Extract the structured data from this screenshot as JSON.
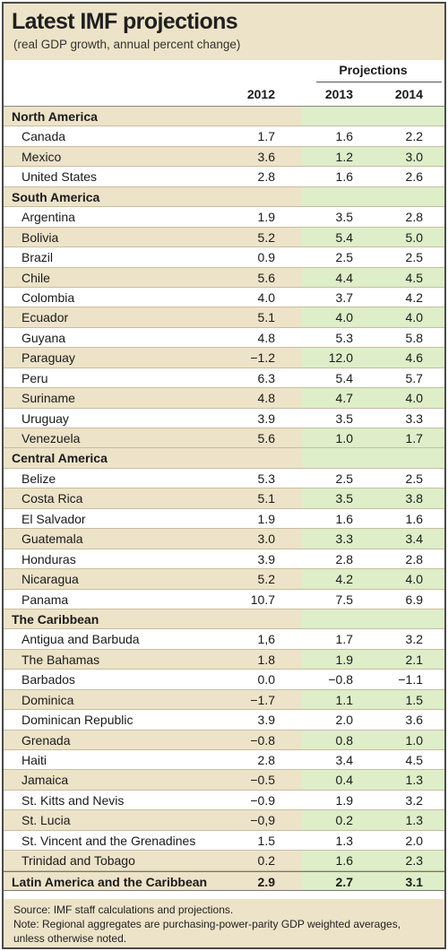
{
  "title": "Latest IMF projections",
  "subtitle": "(real GDP growth, annual percent change)",
  "projections_label": "Projections",
  "years": [
    "2012",
    "2013",
    "2014"
  ],
  "rows": [
    {
      "type": "region",
      "label": "North America"
    },
    {
      "type": "country",
      "label": "Canada",
      "v": [
        "1.7",
        "1.6",
        "2.2"
      ]
    },
    {
      "type": "country",
      "label": "Mexico",
      "v": [
        "3.6",
        "1.2",
        "3.0"
      ]
    },
    {
      "type": "country",
      "label": "United States",
      "v": [
        "2.8",
        "1.6",
        "2.6"
      ]
    },
    {
      "type": "region",
      "label": "South America"
    },
    {
      "type": "country",
      "label": "Argentina",
      "v": [
        "1.9",
        "3.5",
        "2.8"
      ]
    },
    {
      "type": "country",
      "label": "Bolivia",
      "v": [
        "5.2",
        "5.4",
        "5.0"
      ]
    },
    {
      "type": "country",
      "label": "Brazil",
      "v": [
        "0.9",
        "2.5",
        "2.5"
      ]
    },
    {
      "type": "country",
      "label": "Chile",
      "v": [
        "5.6",
        "4.4",
        "4.5"
      ]
    },
    {
      "type": "country",
      "label": "Colombia",
      "v": [
        "4.0",
        "3.7",
        "4.2"
      ]
    },
    {
      "type": "country",
      "label": "Ecuador",
      "v": [
        "5.1",
        "4.0",
        "4.0"
      ]
    },
    {
      "type": "country",
      "label": "Guyana",
      "v": [
        "4.8",
        "5.3",
        "5.8"
      ]
    },
    {
      "type": "country",
      "label": "Paraguay",
      "v": [
        "−1.2",
        "12.0",
        "4.6"
      ]
    },
    {
      "type": "country",
      "label": "Peru",
      "v": [
        "6.3",
        "5.4",
        "5.7"
      ]
    },
    {
      "type": "country",
      "label": "Suriname",
      "v": [
        "4.8",
        "4.7",
        "4.0"
      ]
    },
    {
      "type": "country",
      "label": "Uruguay",
      "v": [
        "3.9",
        "3.5",
        "3.3"
      ]
    },
    {
      "type": "country",
      "label": "Venezuela",
      "v": [
        "5.6",
        "1.0",
        "1.7"
      ]
    },
    {
      "type": "region",
      "label": "Central America"
    },
    {
      "type": "country",
      "label": "Belize",
      "v": [
        "5.3",
        "2.5",
        "2.5"
      ]
    },
    {
      "type": "country",
      "label": "Costa Rica",
      "v": [
        "5.1",
        "3.5",
        "3.8"
      ]
    },
    {
      "type": "country",
      "label": "El Salvador",
      "v": [
        "1.9",
        "1.6",
        "1.6"
      ]
    },
    {
      "type": "country",
      "label": "Guatemala",
      "v": [
        "3.0",
        "3.3",
        "3.4"
      ]
    },
    {
      "type": "country",
      "label": "Honduras",
      "v": [
        "3.9",
        "2.8",
        "2.8"
      ]
    },
    {
      "type": "country",
      "label": "Nicaragua",
      "v": [
        "5.2",
        "4.2",
        "4.0"
      ]
    },
    {
      "type": "country",
      "label": "Panama",
      "v": [
        "10.7",
        "7.5",
        "6.9"
      ]
    },
    {
      "type": "region",
      "label": "The Caribbean"
    },
    {
      "type": "country",
      "label": "Antigua and Barbuda",
      "v": [
        "1,6",
        "1.7",
        "3.2"
      ]
    },
    {
      "type": "country",
      "label": "The Bahamas",
      "v": [
        "1.8",
        "1.9",
        "2.1"
      ]
    },
    {
      "type": "country",
      "label": "Barbados",
      "v": [
        "0.0",
        "−0.8",
        "−1.1"
      ]
    },
    {
      "type": "country",
      "label": "Dominica",
      "v": [
        "−1.7",
        "1.1",
        "1.5"
      ]
    },
    {
      "type": "country",
      "label": "Dominican Republic",
      "v": [
        "3.9",
        "2.0",
        "3.6"
      ]
    },
    {
      "type": "country",
      "label": "Grenada",
      "v": [
        "−0.8",
        "0.8",
        "1.0"
      ]
    },
    {
      "type": "country",
      "label": "Haiti",
      "v": [
        "2.8",
        "3.4",
        "4.5"
      ]
    },
    {
      "type": "country",
      "label": "Jamaica",
      "v": [
        "−0.5",
        "0.4",
        "1.3"
      ]
    },
    {
      "type": "country",
      "label": "St. Kitts and Nevis",
      "v": [
        "−0.9",
        "1.9",
        "3.2"
      ]
    },
    {
      "type": "country",
      "label": "St. Lucia",
      "v": [
        "−0,9",
        "0.2",
        "1.3"
      ]
    },
    {
      "type": "country",
      "label": "St. Vincent and the Grenadines",
      "v": [
        "1.5",
        "1.3",
        "2.0"
      ]
    },
    {
      "type": "country",
      "label": "Trinidad and Tobago",
      "v": [
        "0.2",
        "1.6",
        "2.3"
      ]
    },
    {
      "type": "total",
      "label": "Latin America and the Caribbean",
      "v": [
        "2.9",
        "2.7",
        "3.1"
      ]
    }
  ],
  "footnotes": {
    "source": "Source: IMF staff calculations and projections.",
    "note": "Note: Regional aggregates are purchasing-power-parity GDP weighted averages, unless otherwise noted."
  },
  "colors": {
    "tan_shade": "#ede3c8",
    "green_shade": "#ddeec8",
    "border": "#4a4a4a"
  }
}
